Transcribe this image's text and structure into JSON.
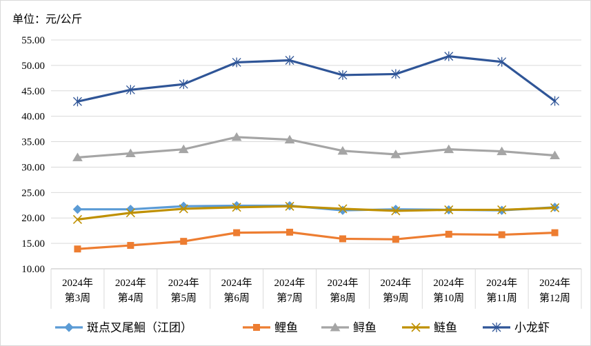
{
  "unit_label": "单位：元/公斤",
  "chart_data": {
    "type": "line",
    "categories": [
      [
        "2024年",
        "第3周"
      ],
      [
        "2024年",
        "第4周"
      ],
      [
        "2024年",
        "第5周"
      ],
      [
        "2024年",
        "第6周"
      ],
      [
        "2024年",
        "第7周"
      ],
      [
        "2024年",
        "第8周"
      ],
      [
        "2024年",
        "第9周"
      ],
      [
        "2024年",
        "第10周"
      ],
      [
        "2024年",
        "第11周"
      ],
      [
        "2024年",
        "第12周"
      ]
    ],
    "ylim": [
      10,
      55
    ],
    "ytick_step": 5,
    "ytick_format_decimals": 2,
    "grid": "horizontal",
    "legend_position": "bottom",
    "series": [
      {
        "name": "斑点叉尾鮰（江团）",
        "color": "#5B9BD5",
        "marker": "diamond",
        "values": [
          21.7,
          21.7,
          22.3,
          22.4,
          22.4,
          21.5,
          21.7,
          21.6,
          21.5,
          22.1
        ]
      },
      {
        "name": "鲤鱼",
        "color": "#ED7D31",
        "marker": "square",
        "values": [
          13.9,
          14.6,
          15.4,
          17.1,
          17.2,
          15.9,
          15.8,
          16.8,
          16.7,
          17.1
        ]
      },
      {
        "name": "鲟鱼",
        "color": "#A5A5A5",
        "marker": "triangle",
        "values": [
          31.9,
          32.7,
          33.5,
          35.9,
          35.4,
          33.2,
          32.5,
          33.5,
          33.1,
          32.3
        ]
      },
      {
        "name": "鲢鱼",
        "color": "#BF9000",
        "marker": "x",
        "values": [
          19.7,
          21.0,
          21.8,
          22.1,
          22.3,
          21.8,
          21.4,
          21.6,
          21.6,
          22.0
        ]
      },
      {
        "name": "小龙虾",
        "color": "#2F5597",
        "marker": "star",
        "values": [
          42.9,
          45.2,
          46.3,
          50.6,
          51.0,
          48.1,
          48.3,
          51.8,
          50.7,
          43.0
        ]
      }
    ]
  }
}
